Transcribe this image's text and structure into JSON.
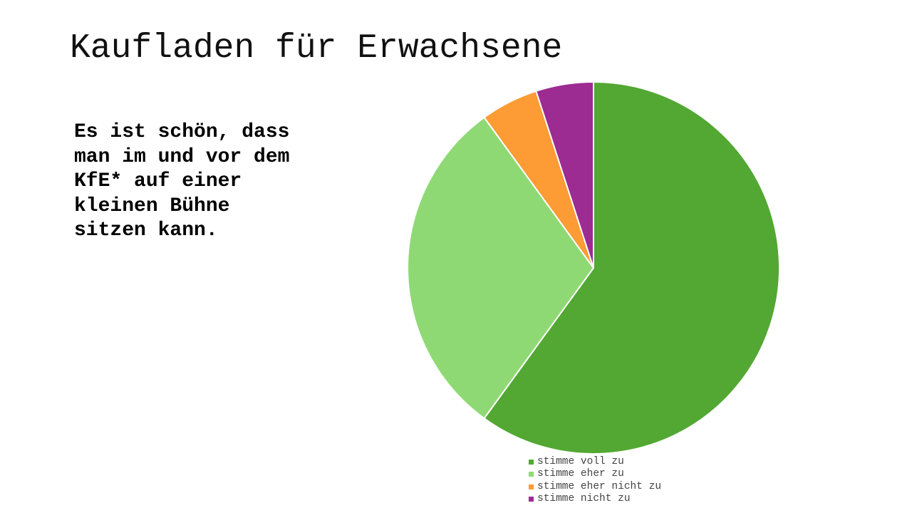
{
  "slide": {
    "title": "Kaufladen für Erwachsene",
    "statement_lines": [
      "Es ist schön, dass",
      "man im und vor dem",
      "KfE* auf einer",
      "kleinen Bühne",
      "sitzen kann."
    ]
  },
  "chart_data": {
    "type": "pie",
    "categories": [
      "stimme voll zu",
      "stimme eher zu",
      "stimme eher nicht zu",
      "stimme nicht zu"
    ],
    "values": [
      60,
      30,
      5,
      5
    ],
    "colors": [
      "#52a832",
      "#8fd975",
      "#fd9b35",
      "#9c2b92"
    ],
    "legend_position": "bottom",
    "start": "top, clockwise"
  }
}
